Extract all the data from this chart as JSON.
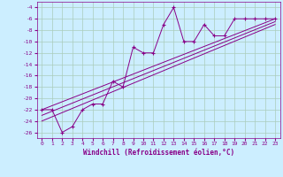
{
  "xlabel": "Windchill (Refroidissement éolien,°C)",
  "bg_color": "#cceeff",
  "grid_color": "#aaccbb",
  "line_color": "#880088",
  "xlim": [
    -0.5,
    23.5
  ],
  "ylim": [
    -27,
    -3
  ],
  "yticks": [
    -4,
    -6,
    -8,
    -10,
    -12,
    -14,
    -16,
    -18,
    -20,
    -22,
    -24,
    -26
  ],
  "xticks": [
    0,
    1,
    2,
    3,
    4,
    5,
    6,
    7,
    8,
    9,
    10,
    11,
    12,
    13,
    14,
    15,
    16,
    17,
    18,
    19,
    20,
    21,
    22,
    23
  ],
  "main_x": [
    0,
    1,
    2,
    3,
    4,
    5,
    6,
    7,
    8,
    9,
    10,
    11,
    12,
    13,
    14,
    15,
    16,
    17,
    18,
    19,
    20,
    21,
    22,
    23
  ],
  "main_y": [
    -22,
    -22,
    -26,
    -25,
    -22,
    -21,
    -21,
    -17,
    -18,
    -11,
    -12,
    -12,
    -7,
    -4,
    -10,
    -10,
    -7,
    -9,
    -9,
    -6,
    -6,
    -6,
    -6,
    -6
  ],
  "ref_lines": [
    {
      "x0": 0,
      "y0": -22,
      "x1": 23,
      "y1": -6
    },
    {
      "x0": 0,
      "y0": -23,
      "x1": 23,
      "y1": -6.5
    },
    {
      "x0": 0,
      "y0": -24,
      "x1": 23,
      "y1": -7
    }
  ]
}
